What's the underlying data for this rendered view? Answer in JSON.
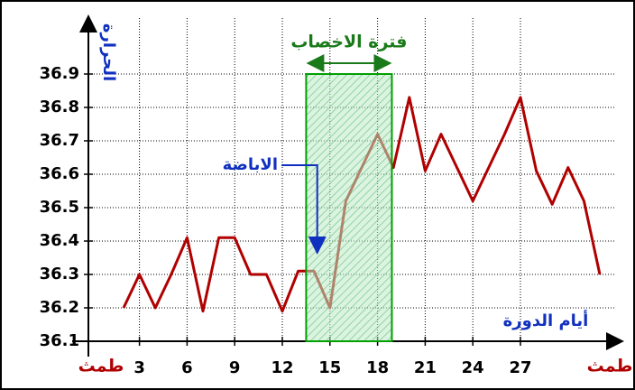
{
  "chart_data": {
    "type": "line",
    "y_label": "الحرارة",
    "x_label": "أيام الدورة",
    "period_labels": [
      "طمث",
      "طمث"
    ],
    "fertile_label": "فترة الاخصاب",
    "ovulation_label": "الاباضة",
    "x": [
      2,
      3,
      4,
      5,
      6,
      7,
      8,
      9,
      10,
      11,
      12,
      13,
      14,
      15,
      16,
      17,
      18,
      19,
      20,
      21,
      22,
      23,
      24,
      25,
      26,
      27,
      28,
      29,
      30,
      31,
      32
    ],
    "series": [
      {
        "name": "temperature",
        "color": "#b00000",
        "values": [
          36.2,
          36.3,
          36.2,
          36.3,
          36.41,
          36.19,
          36.41,
          36.41,
          36.3,
          36.3,
          36.19,
          36.31,
          36.31,
          36.2,
          36.52,
          36.62,
          36.72,
          36.62,
          36.83,
          36.61,
          36.72,
          36.62,
          36.52,
          36.62,
          36.72,
          36.83,
          36.61,
          36.51,
          36.62,
          36.52,
          36.3
        ]
      }
    ],
    "fertile_window": [
      13.5,
      18.9
    ],
    "fertile_top": 36.9,
    "ovulation_day": 14.2,
    "xlim": [
      0,
      33
    ],
    "ylim": [
      36.1,
      37.0
    ],
    "xticks": [
      3,
      6,
      9,
      12,
      15,
      18,
      21,
      24,
      27
    ],
    "yticks": [
      36.1,
      36.2,
      36.3,
      36.4,
      36.5,
      36.6,
      36.7,
      36.8,
      36.9
    ],
    "grid": true
  }
}
